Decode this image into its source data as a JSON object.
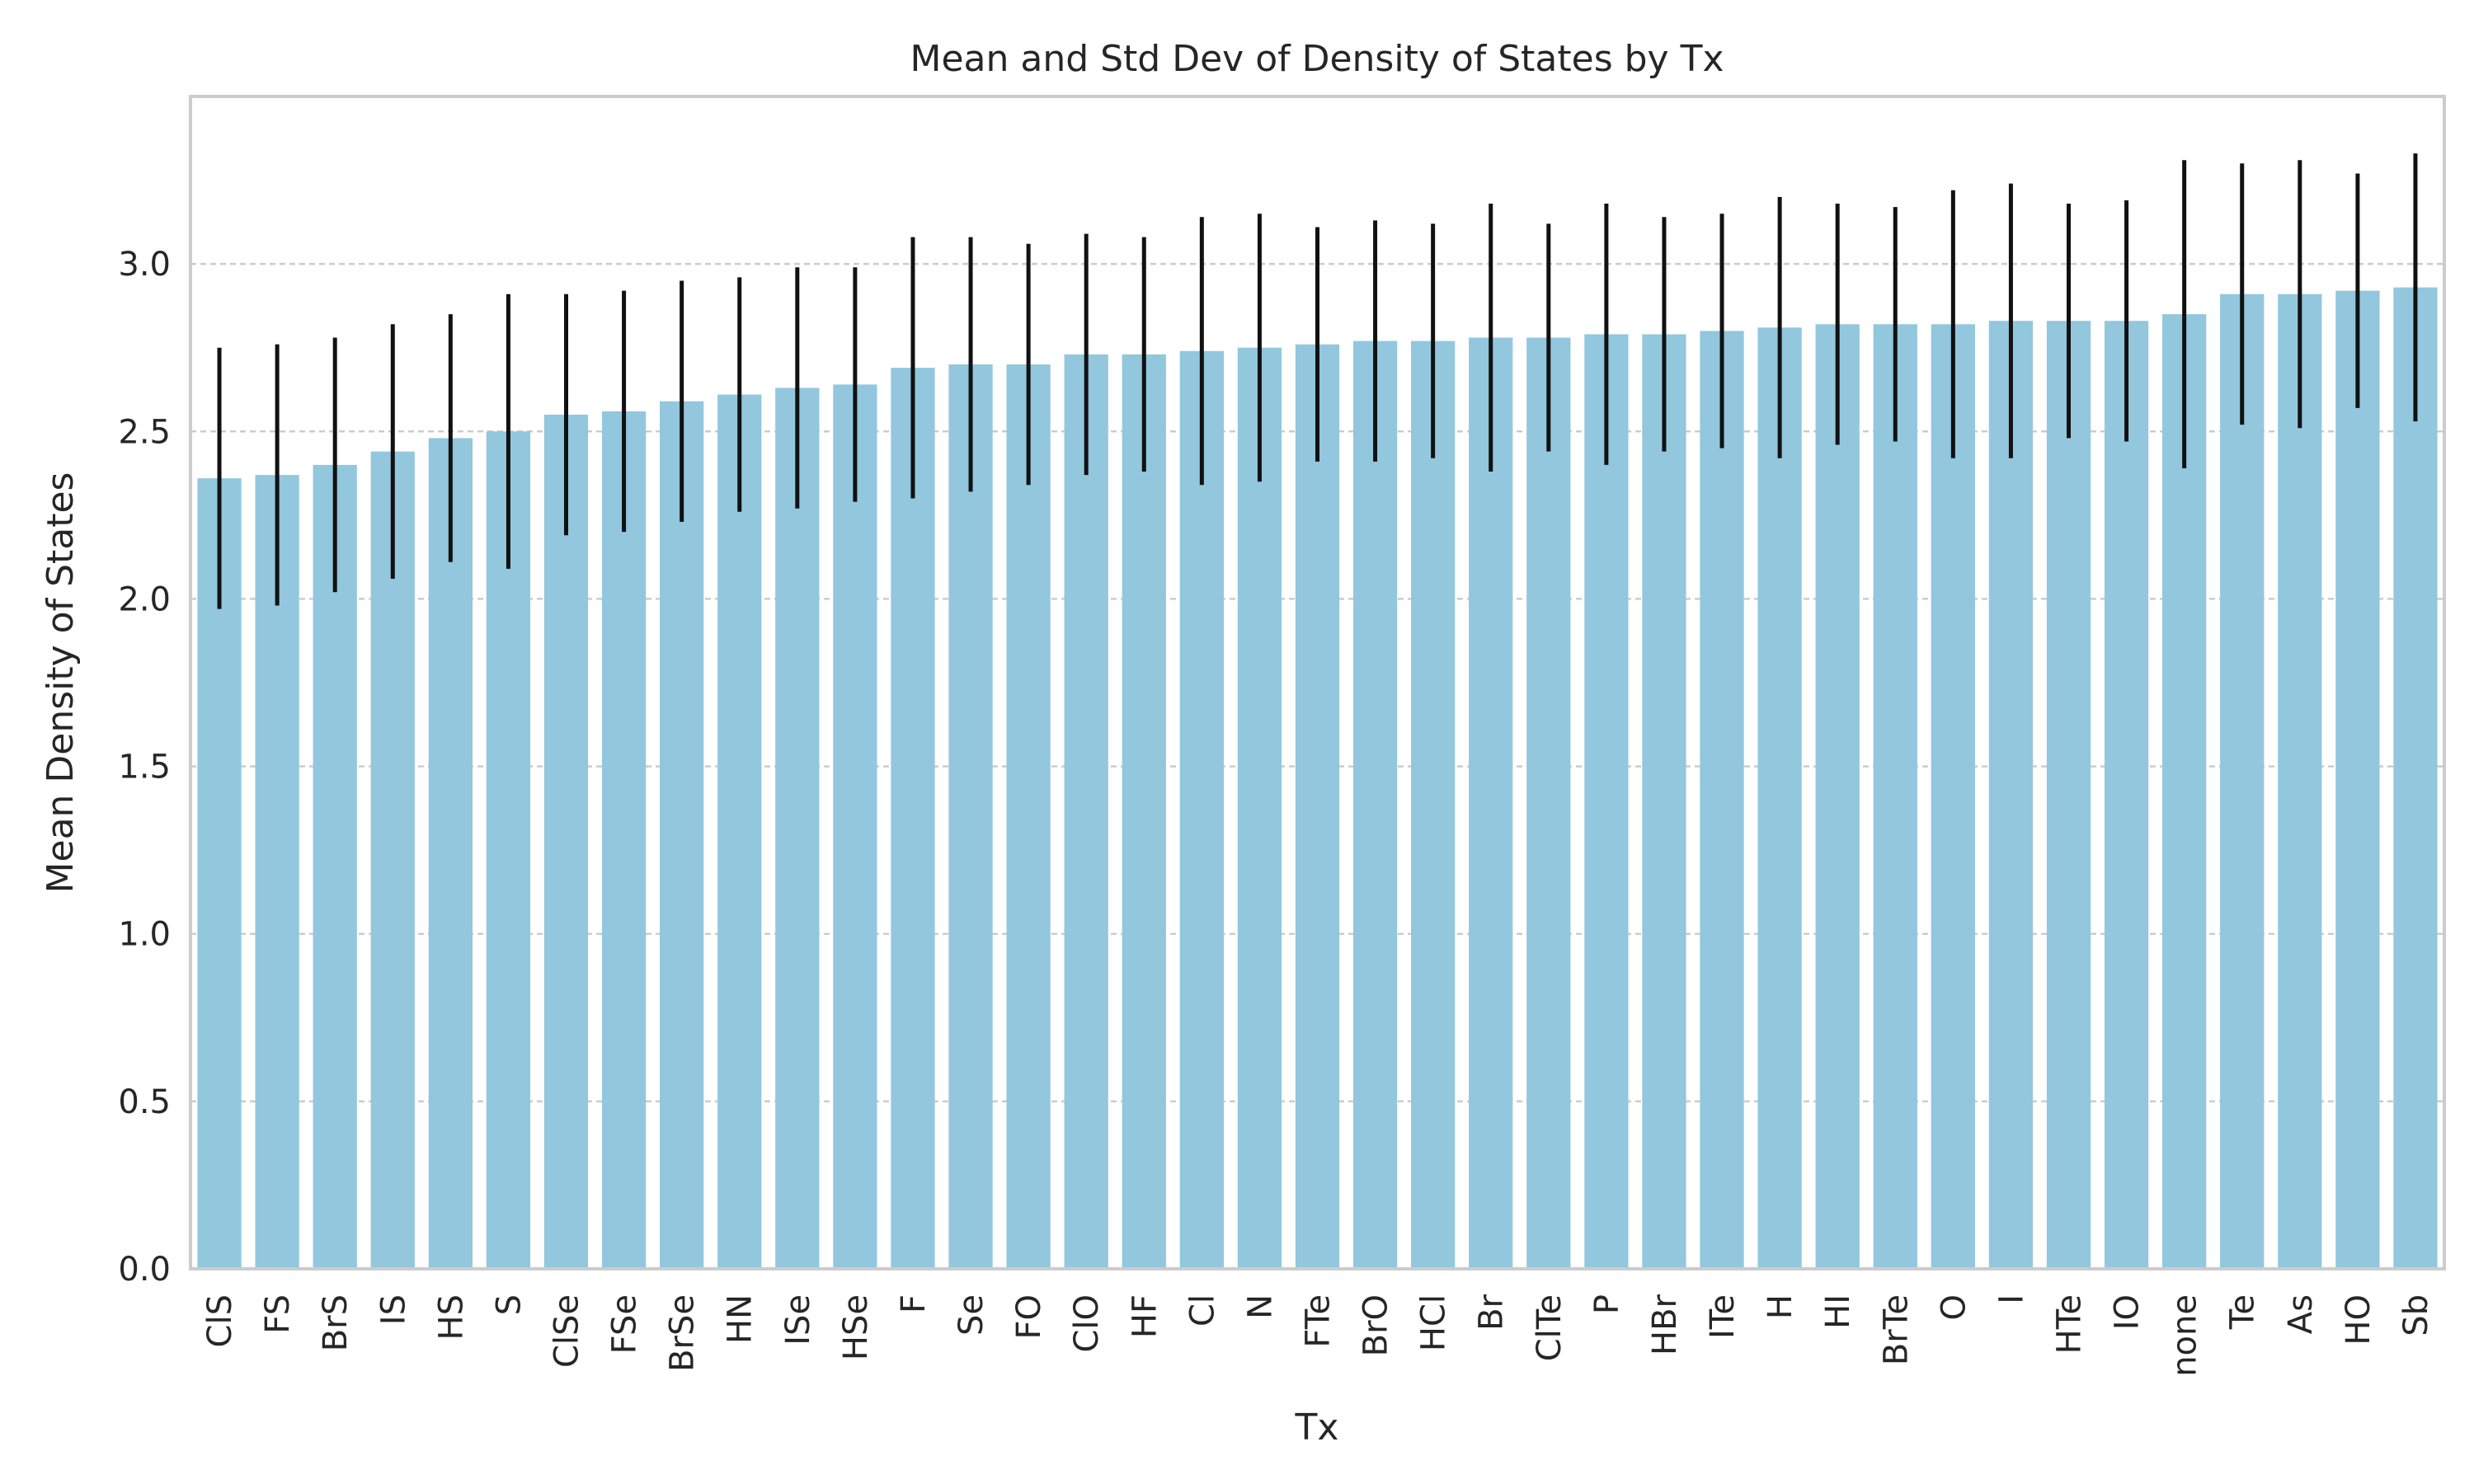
{
  "chart_data": {
    "type": "bar",
    "title": "Mean and Std Dev of Density of States by Tx",
    "xlabel": "Tx",
    "ylabel": "Mean Density of States",
    "ylim": [
      0,
      3.5
    ],
    "yticks": [
      0.0,
      0.5,
      1.0,
      1.5,
      2.0,
      2.5,
      3.0
    ],
    "ytick_labels": [
      "0.0",
      "0.5",
      "1.0",
      "1.5",
      "2.0",
      "2.5",
      "3.0"
    ],
    "grid": true,
    "bar_color": "#92c7de",
    "errorbar_color": "#111111",
    "categories": [
      "ClS",
      "FS",
      "BrS",
      "IS",
      "HS",
      "S",
      "ClSe",
      "FSe",
      "BrSe",
      "HN",
      "ISe",
      "HSe",
      "F",
      "Se",
      "FO",
      "ClO",
      "HF",
      "Cl",
      "N",
      "FTe",
      "BrO",
      "HCl",
      "Br",
      "ClTe",
      "P",
      "HBr",
      "ITe",
      "H",
      "HI",
      "BrTe",
      "O",
      "I",
      "HTe",
      "IO",
      "none",
      "Te",
      "As",
      "HO",
      "Sb"
    ],
    "values": [
      2.36,
      2.37,
      2.4,
      2.44,
      2.48,
      2.5,
      2.55,
      2.56,
      2.59,
      2.61,
      2.63,
      2.64,
      2.69,
      2.7,
      2.7,
      2.73,
      2.73,
      2.74,
      2.75,
      2.76,
      2.77,
      2.77,
      2.78,
      2.78,
      2.79,
      2.79,
      2.8,
      2.81,
      2.82,
      2.82,
      2.82,
      2.83,
      2.83,
      2.83,
      2.85,
      2.91,
      2.91,
      2.92,
      2.93
    ],
    "std": [
      0.39,
      0.39,
      0.38,
      0.38,
      0.37,
      0.41,
      0.36,
      0.36,
      0.36,
      0.35,
      0.36,
      0.35,
      0.39,
      0.38,
      0.36,
      0.36,
      0.35,
      0.4,
      0.4,
      0.35,
      0.36,
      0.35,
      0.4,
      0.34,
      0.39,
      0.35,
      0.35,
      0.39,
      0.36,
      0.35,
      0.4,
      0.41,
      0.35,
      0.36,
      0.46,
      0.39,
      0.4,
      0.35,
      0.4
    ]
  }
}
